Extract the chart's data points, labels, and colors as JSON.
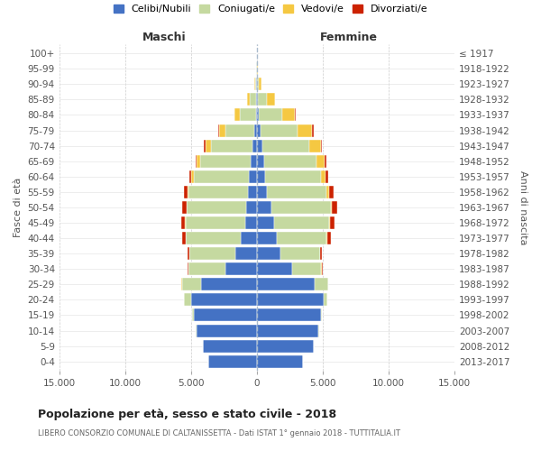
{
  "age_groups": [
    "0-4",
    "5-9",
    "10-14",
    "15-19",
    "20-24",
    "25-29",
    "30-34",
    "35-39",
    "40-44",
    "45-49",
    "50-54",
    "55-59",
    "60-64",
    "65-69",
    "70-74",
    "75-79",
    "80-84",
    "85-89",
    "90-94",
    "95-99",
    "100+"
  ],
  "birth_years": [
    "2013-2017",
    "2008-2012",
    "2003-2007",
    "1998-2002",
    "1993-1997",
    "1988-1992",
    "1983-1987",
    "1978-1982",
    "1973-1977",
    "1968-1972",
    "1963-1967",
    "1958-1962",
    "1953-1957",
    "1948-1952",
    "1943-1947",
    "1938-1942",
    "1933-1937",
    "1928-1932",
    "1923-1927",
    "1918-1922",
    "≤ 1917"
  ],
  "maschi": {
    "celibe": [
      3700,
      4100,
      4600,
      4800,
      5000,
      4200,
      2400,
      1600,
      1200,
      900,
      800,
      700,
      600,
      500,
      300,
      200,
      80,
      60,
      30,
      10,
      5
    ],
    "coniugato": [
      2,
      5,
      20,
      100,
      500,
      1500,
      2800,
      3500,
      4200,
      4500,
      4500,
      4500,
      4200,
      3800,
      3200,
      2200,
      1200,
      500,
      100,
      15,
      5
    ],
    "vedovo": [
      0,
      0,
      0,
      1,
      2,
      3,
      5,
      10,
      20,
      30,
      50,
      80,
      150,
      250,
      400,
      450,
      400,
      200,
      60,
      10,
      2
    ],
    "divorziato": [
      0,
      1,
      2,
      5,
      10,
      30,
      80,
      150,
      250,
      300,
      350,
      250,
      200,
      120,
      120,
      80,
      30,
      10,
      5,
      2,
      0
    ]
  },
  "femmine": {
    "nubile": [
      3500,
      4300,
      4700,
      4900,
      5100,
      4400,
      2700,
      1800,
      1500,
      1300,
      1100,
      800,
      650,
      550,
      450,
      300,
      120,
      60,
      30,
      15,
      5
    ],
    "coniugata": [
      1,
      3,
      10,
      50,
      250,
      1000,
      2200,
      3000,
      3800,
      4200,
      4500,
      4500,
      4200,
      4000,
      3500,
      2800,
      1800,
      700,
      150,
      20,
      5
    ],
    "vedova": [
      0,
      0,
      1,
      2,
      3,
      5,
      8,
      15,
      30,
      60,
      120,
      200,
      350,
      600,
      900,
      1100,
      1000,
      600,
      200,
      30,
      5
    ],
    "divorziata": [
      0,
      1,
      2,
      5,
      15,
      40,
      80,
      150,
      280,
      350,
      400,
      300,
      200,
      150,
      120,
      100,
      40,
      15,
      5,
      2,
      0
    ]
  },
  "colors": {
    "celibe": "#4472c4",
    "coniugato": "#c5d9a0",
    "vedovo": "#f5c842",
    "divorziato": "#cc2200"
  },
  "xlim": 15000,
  "title": "Popolazione per età, sesso e stato civile - 2018",
  "subtitle": "LIBERO CONSORZIO COMUNALE DI CALTANISSETTA - Dati ISTAT 1° gennaio 2018 - TUTTITALIA.IT",
  "xlabel_left": "Maschi",
  "xlabel_right": "Femmine",
  "ylabel_left": "Fasce di età",
  "ylabel_right": "Anni di nascita",
  "legend_labels": [
    "Celibi/Nubili",
    "Coniugati/e",
    "Vedovi/e",
    "Divorziati/e"
  ],
  "tick_positions": [
    -15000,
    -10000,
    -5000,
    0,
    5000,
    10000,
    15000
  ],
  "tick_labels": [
    "15.000",
    "10.000",
    "5.000",
    "0",
    "5.000",
    "10.000",
    "15.000"
  ],
  "background_color": "#ffffff",
  "grid_color": "#cccccc"
}
